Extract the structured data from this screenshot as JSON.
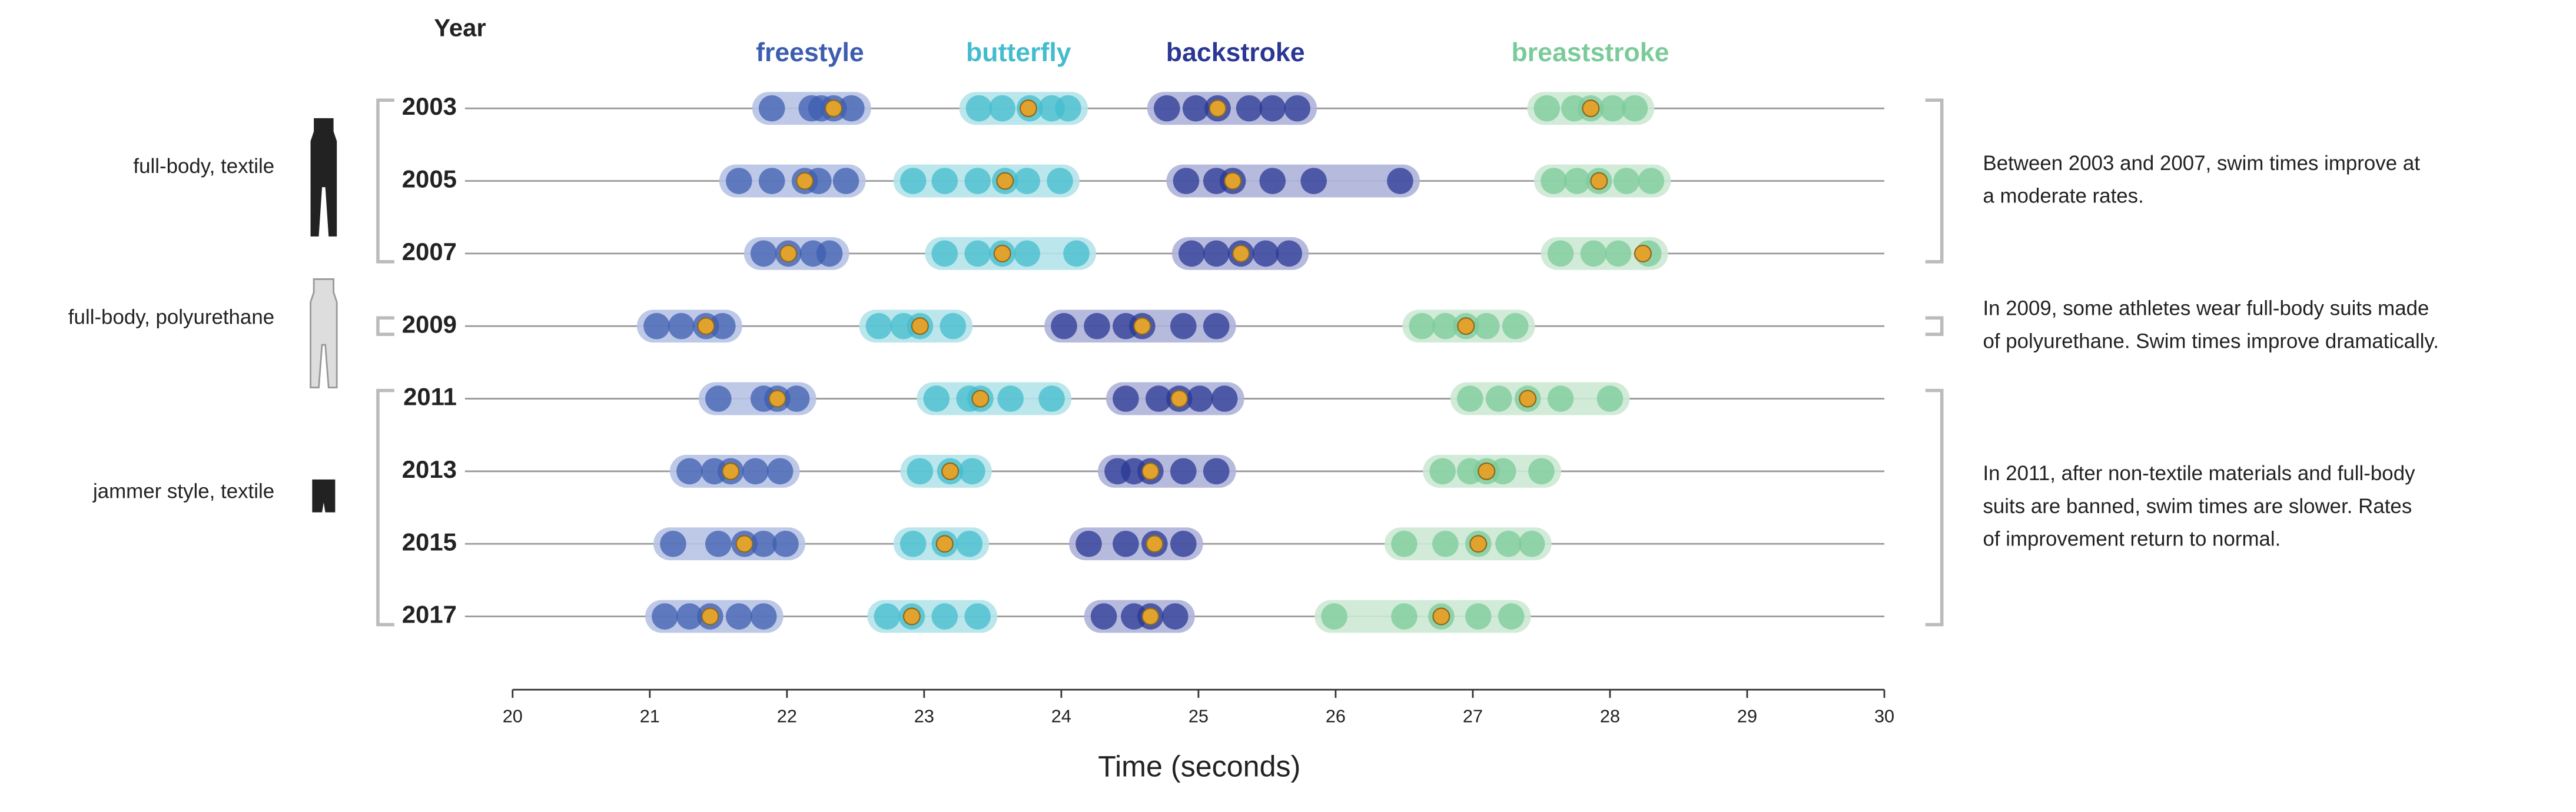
{
  "chart_data": {
    "type": "dot-range",
    "y_label": "Year",
    "x_label": "Time (seconds)",
    "xlim": [
      20,
      30
    ],
    "xticks": [
      20,
      21,
      22,
      23,
      24,
      25,
      26,
      27,
      28,
      29,
      30
    ],
    "years": [
      "2003",
      "2005",
      "2007",
      "2009",
      "2011",
      "2013",
      "2015",
      "2017"
    ],
    "mean_color": "#e2a22e",
    "series": [
      {
        "name": "freestyle",
        "color": "#3d5db0",
        "band_color": "#b7c3e4",
        "times": [
          [
            21.89,
            22.18,
            22.25,
            22.34,
            22.47
          ],
          [
            21.65,
            21.89,
            22.13,
            22.23,
            22.43
          ],
          [
            21.83,
            22.01,
            22.19,
            22.31
          ],
          [
            21.05,
            21.23,
            21.41,
            21.53
          ],
          [
            21.5,
            21.83,
            21.93,
            22.07
          ],
          [
            21.29,
            21.47,
            21.59,
            21.77,
            21.95
          ],
          [
            21.17,
            21.5,
            21.69,
            21.83,
            21.99
          ],
          [
            21.11,
            21.29,
            21.44,
            21.65,
            21.83
          ]
        ],
        "means": [
          22.34,
          22.13,
          22.01,
          21.41,
          21.93,
          21.59,
          21.69,
          21.44
        ]
      },
      {
        "name": "butterfly",
        "color": "#43bccd",
        "band_color": "#b3e3ea",
        "times": [
          [
            23.4,
            23.57,
            23.77,
            23.93,
            24.05
          ],
          [
            22.92,
            23.15,
            23.39,
            23.59,
            23.75,
            23.99
          ],
          [
            23.15,
            23.39,
            23.57,
            23.75,
            24.11
          ],
          [
            22.67,
            22.85,
            22.97,
            23.21
          ],
          [
            23.09,
            23.33,
            23.41,
            23.63,
            23.93
          ],
          [
            22.97,
            23.19,
            23.35
          ],
          [
            22.92,
            23.15,
            23.33
          ],
          [
            22.73,
            22.91,
            23.15,
            23.39
          ]
        ],
        "means": [
          23.76,
          23.59,
          23.57,
          22.97,
          23.41,
          23.19,
          23.15,
          22.91
        ]
      },
      {
        "name": "backstroke",
        "color": "#2a3894",
        "band_color": "#aeb4d9",
        "times": [
          [
            24.77,
            24.98,
            25.14,
            25.37,
            25.54,
            25.72
          ],
          [
            24.91,
            25.13,
            25.25,
            25.54,
            25.84,
            26.47
          ],
          [
            24.95,
            25.13,
            25.31,
            25.49,
            25.66
          ],
          [
            24.02,
            24.26,
            24.47,
            24.59,
            24.89,
            25.13
          ],
          [
            24.47,
            24.71,
            24.86,
            25.01,
            25.19
          ],
          [
            24.41,
            24.53,
            24.65,
            24.89,
            25.13
          ],
          [
            24.2,
            24.47,
            24.68,
            24.89
          ],
          [
            24.31,
            24.53,
            24.65,
            24.83
          ]
        ],
        "means": [
          25.14,
          25.25,
          25.31,
          24.59,
          24.86,
          24.65,
          24.68,
          24.65
        ]
      },
      {
        "name": "breaststroke",
        "color": "#7bcb9a",
        "band_color": "#cce9d4",
        "times": [
          [
            27.54,
            27.74,
            27.86,
            28.02,
            28.18
          ],
          [
            27.59,
            27.76,
            27.92,
            28.12,
            28.3
          ],
          [
            27.64,
            27.88,
            28.06,
            28.28
          ],
          [
            26.63,
            26.8,
            26.95,
            27.1,
            27.31
          ],
          [
            26.98,
            27.19,
            27.4,
            27.64,
            28.0
          ],
          [
            26.78,
            26.98,
            27.1,
            27.22,
            27.5
          ],
          [
            26.5,
            26.8,
            27.04,
            27.26,
            27.43
          ],
          [
            25.99,
            26.5,
            26.77,
            27.04,
            27.28
          ]
        ],
        "means": [
          27.86,
          27.92,
          28.24,
          26.95,
          27.4,
          27.1,
          27.04,
          26.77
        ]
      }
    ],
    "groups": [
      {
        "label": "full-body, textile",
        "note": [
          "Between 2003 and 2007, swim times improve at",
          "a moderate rates."
        ]
      },
      {
        "label": "full-body, polyurethane",
        "note": [
          "In 2009, some athletes wear full-body suits made",
          "of polyurethane. Swim times improve dramatically."
        ]
      },
      {
        "label": "jammer style, textile",
        "note": [
          "In 2011, after non-textile materials and full-body",
          "suits are banned, swim times are slower. Rates",
          "of improvement return to normal."
        ]
      }
    ]
  }
}
